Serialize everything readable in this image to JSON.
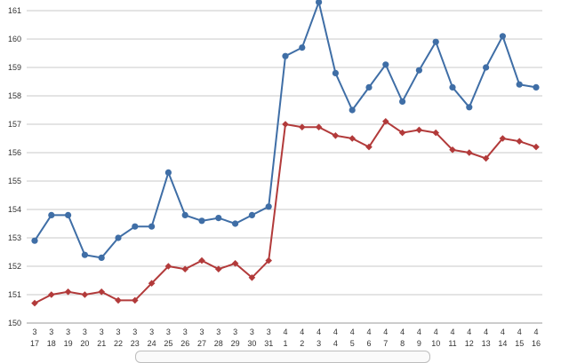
{
  "chart_data": {
    "type": "line",
    "title": "",
    "xlabel": "",
    "ylabel": "",
    "ylim": [
      150,
      161
    ],
    "yticks": [
      150,
      151,
      152,
      153,
      154,
      155,
      156,
      157,
      158,
      159,
      160,
      161
    ],
    "grid": true,
    "categories": [
      {
        "month": "3",
        "day": "17"
      },
      {
        "month": "3",
        "day": "18"
      },
      {
        "month": "3",
        "day": "19"
      },
      {
        "month": "3",
        "day": "20"
      },
      {
        "month": "3",
        "day": "21"
      },
      {
        "month": "3",
        "day": "22"
      },
      {
        "month": "3",
        "day": "23"
      },
      {
        "month": "3",
        "day": "24"
      },
      {
        "month": "3",
        "day": "25"
      },
      {
        "month": "3",
        "day": "26"
      },
      {
        "month": "3",
        "day": "27"
      },
      {
        "month": "3",
        "day": "28"
      },
      {
        "month": "3",
        "day": "29"
      },
      {
        "month": "3",
        "day": "30"
      },
      {
        "month": "3",
        "day": "31"
      },
      {
        "month": "4",
        "day": "1"
      },
      {
        "month": "4",
        "day": "2"
      },
      {
        "month": "4",
        "day": "3"
      },
      {
        "month": "4",
        "day": "4"
      },
      {
        "month": "4",
        "day": "5"
      },
      {
        "month": "4",
        "day": "6"
      },
      {
        "month": "4",
        "day": "7"
      },
      {
        "month": "4",
        "day": "8"
      },
      {
        "month": "4",
        "day": "9"
      },
      {
        "month": "4",
        "day": "10"
      },
      {
        "month": "4",
        "day": "11"
      },
      {
        "month": "4",
        "day": "12"
      },
      {
        "month": "4",
        "day": "13"
      },
      {
        "month": "4",
        "day": "14"
      },
      {
        "month": "4",
        "day": "15"
      },
      {
        "month": "4",
        "day": "16"
      }
    ],
    "series": [
      {
        "color": "#3f6ea6",
        "marker": "circle",
        "values": [
          152.9,
          153.8,
          153.8,
          152.4,
          152.3,
          153.0,
          153.4,
          153.4,
          155.3,
          153.8,
          153.6,
          153.7,
          153.5,
          153.8,
          154.1,
          159.4,
          159.7,
          161.3,
          158.8,
          157.5,
          158.3,
          159.1,
          157.8,
          158.9,
          159.9,
          158.3,
          157.6,
          159.0,
          160.1,
          158.4,
          158.3
        ]
      },
      {
        "color": "#b23a3a",
        "marker": "diamond",
        "values": [
          150.7,
          151.0,
          151.1,
          151.0,
          151.1,
          150.8,
          150.8,
          151.4,
          152.0,
          151.9,
          152.2,
          151.9,
          152.1,
          151.6,
          152.2,
          157.0,
          156.9,
          156.9,
          156.6,
          156.5,
          156.2,
          157.1,
          156.7,
          156.8,
          156.7,
          156.1,
          156.0,
          155.8,
          156.5,
          156.4,
          156.2
        ]
      }
    ]
  }
}
